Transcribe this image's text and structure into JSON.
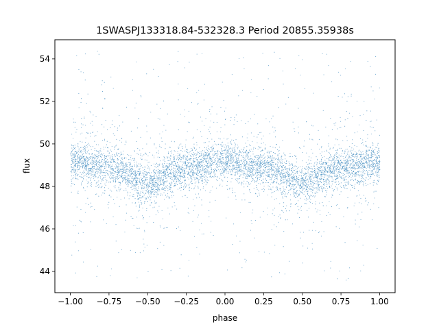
{
  "chart_data": {
    "type": "scatter",
    "title": "1SWASPJ133318.84-532328.3 Period 20855.35938s",
    "xlabel": "phase",
    "ylabel": "flux",
    "xlim": [
      -1.1,
      1.1
    ],
    "ylim": [
      43.0,
      54.9
    ],
    "xticks": [
      -1.0,
      -0.75,
      -0.5,
      -0.25,
      0.0,
      0.25,
      0.5,
      0.75,
      1.0
    ],
    "xtick_labels": [
      "−1.00",
      "−0.75",
      "−0.50",
      "−0.25",
      "0.00",
      "0.25",
      "0.50",
      "0.75",
      "1.00"
    ],
    "yticks": [
      44,
      46,
      48,
      50,
      52,
      54
    ],
    "ytick_labels": [
      "44",
      "46",
      "48",
      "50",
      "52",
      "54"
    ],
    "grid": false,
    "legend": "none",
    "marker_color": "#1f77b4",
    "phase_range": [
      -1.0,
      1.0
    ],
    "flux_range": [
      43.6,
      54.4
    ],
    "profile": {
      "phase": [
        -1.0,
        -0.75,
        -0.5,
        -0.25,
        0.0,
        0.25,
        0.5,
        0.75,
        1.0
      ],
      "flux": [
        49.1,
        48.9,
        48.2,
        48.9,
        49.2,
        48.9,
        48.2,
        48.9,
        49.1
      ]
    }
  }
}
